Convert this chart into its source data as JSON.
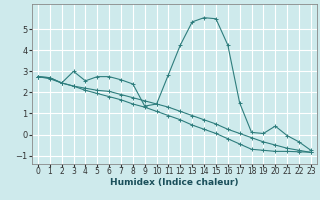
{
  "title": "",
  "xlabel": "Humidex (Indice chaleur)",
  "xlim": [
    -0.5,
    23.5
  ],
  "ylim": [
    -1.4,
    6.2
  ],
  "xticks": [
    0,
    1,
    2,
    3,
    4,
    5,
    6,
    7,
    8,
    9,
    10,
    11,
    12,
    13,
    14,
    15,
    16,
    17,
    18,
    19,
    20,
    21,
    22,
    23
  ],
  "yticks": [
    -1,
    0,
    1,
    2,
    3,
    4,
    5
  ],
  "bg_color": "#ceeaec",
  "grid_color": "#ffffff",
  "line_color": "#2e7d7d",
  "lines": [
    [
      0,
      2.75,
      1,
      2.7,
      2,
      2.45,
      3,
      3.0,
      4,
      2.55,
      5,
      2.75,
      6,
      2.75,
      7,
      2.6,
      8,
      2.4,
      9,
      1.35,
      10,
      1.45,
      11,
      2.85,
      12,
      4.25,
      13,
      5.35,
      14,
      5.55,
      15,
      5.5,
      16,
      4.25,
      17,
      1.5,
      18,
      0.1,
      19,
      0.05,
      20,
      0.4,
      21,
      -0.05,
      22,
      -0.35,
      23,
      -0.75
    ],
    [
      0,
      2.75,
      1,
      2.7,
      2,
      2.45,
      3,
      2.3,
      4,
      2.2,
      5,
      2.1,
      6,
      2.05,
      7,
      1.9,
      8,
      1.75,
      9,
      1.6,
      10,
      1.45,
      11,
      1.3,
      12,
      1.1,
      13,
      0.9,
      14,
      0.7,
      15,
      0.5,
      16,
      0.25,
      17,
      0.05,
      18,
      -0.15,
      19,
      -0.35,
      20,
      -0.5,
      21,
      -0.65,
      22,
      -0.75,
      23,
      -0.85
    ],
    [
      0,
      2.75,
      1,
      2.65,
      2,
      2.45,
      3,
      2.3,
      4,
      2.1,
      5,
      1.95,
      6,
      1.8,
      7,
      1.65,
      8,
      1.45,
      9,
      1.3,
      10,
      1.1,
      11,
      0.9,
      12,
      0.7,
      13,
      0.45,
      14,
      0.25,
      15,
      0.05,
      16,
      -0.2,
      17,
      -0.45,
      18,
      -0.7,
      19,
      -0.75,
      20,
      -0.8,
      21,
      -0.8,
      22,
      -0.82,
      23,
      -0.84
    ]
  ],
  "tick_fontsize": 5.5,
  "xlabel_fontsize": 6.5,
  "xlabel_color": "#1a4f5a",
  "spine_color": "#888888"
}
